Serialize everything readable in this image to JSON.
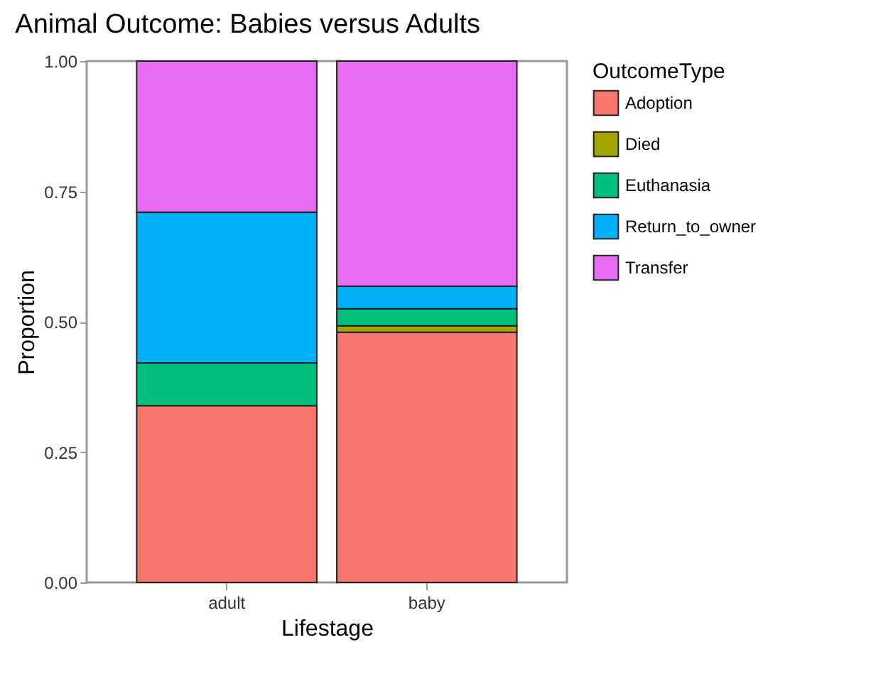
{
  "chart_data": {
    "type": "bar",
    "title": "Animal Outcome: Babies versus Adults",
    "xlabel": "Lifestage",
    "ylabel": "Proportion",
    "legend_title": "OutcomeType",
    "categories": [
      "adult",
      "baby"
    ],
    "stacked": true,
    "ylim": [
      0,
      1
    ],
    "yticks": [
      {
        "value": 0,
        "label": "0.00"
      },
      {
        "value": 0.25,
        "label": "0.25"
      },
      {
        "value": 0.5,
        "label": "0.50"
      },
      {
        "value": 0.75,
        "label": "0.75"
      },
      {
        "value": 1,
        "label": "1.00"
      }
    ],
    "grid": false,
    "legend": "right",
    "series": [
      {
        "name": "Adoption",
        "color": "#f8766d",
        "values": [
          0.339,
          0.48
        ]
      },
      {
        "name": "Died",
        "color": "#a3a500",
        "values": [
          null,
          0.012
        ]
      },
      {
        "name": "Euthanasia",
        "color": "#00bf7d",
        "values": [
          0.082,
          0.033
        ]
      },
      {
        "name": "Return_to_owner",
        "color": "#00b0f6",
        "values": [
          0.289,
          0.043
        ]
      },
      {
        "name": "Transfer",
        "color": "#e76bf3",
        "values": [
          0.29,
          0.432
        ]
      }
    ]
  }
}
